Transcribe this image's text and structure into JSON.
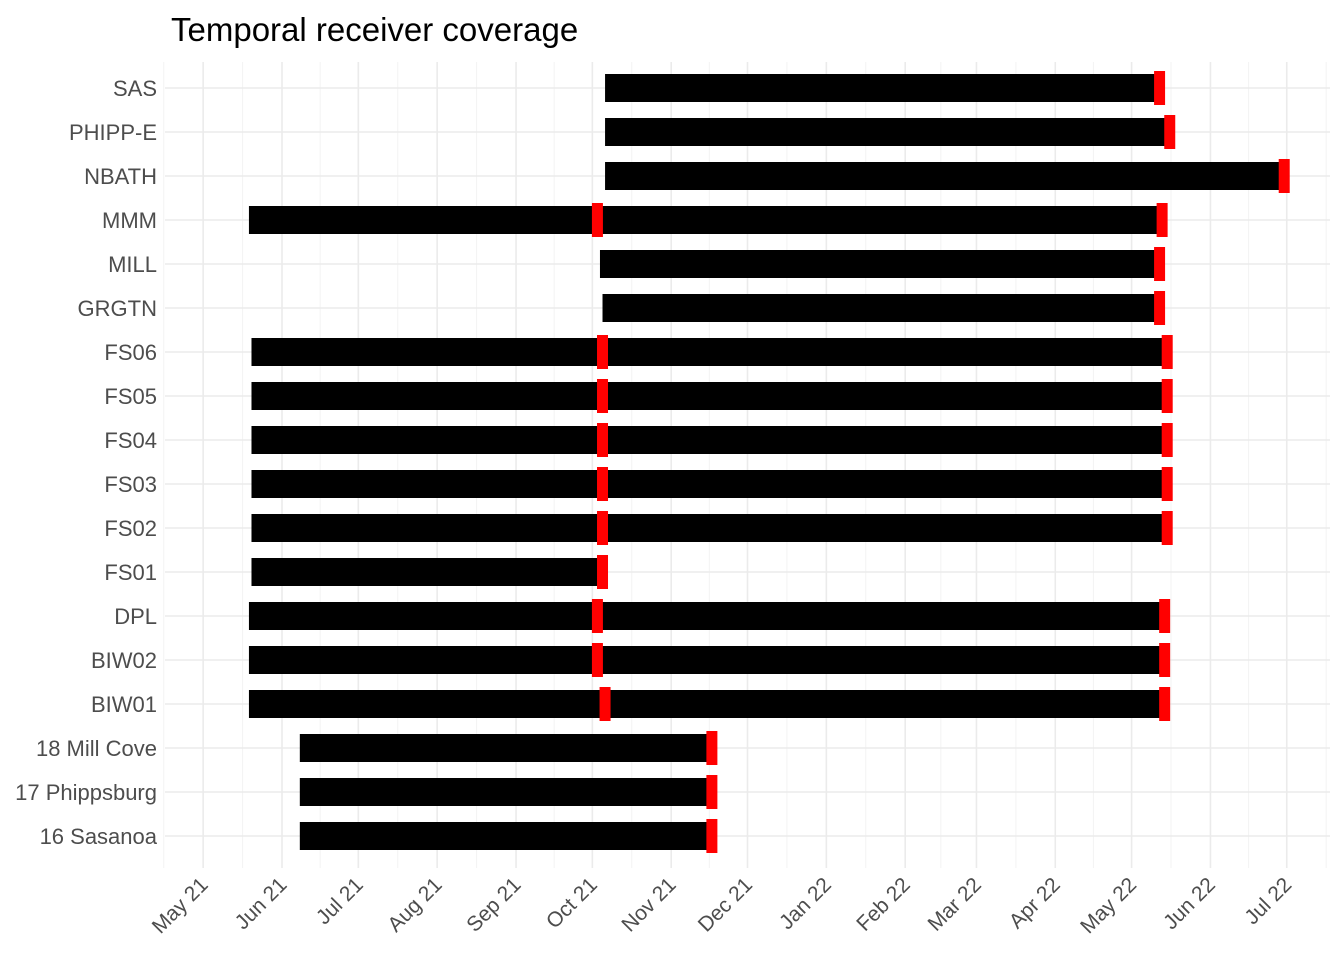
{
  "chart_data": {
    "type": "bar",
    "subtype": "timeline",
    "title": "Temporal receiver coverage",
    "xlabel": "",
    "ylabel": "",
    "grid": true,
    "xlim": [
      "2021-04-16",
      "2022-07-18"
    ],
    "x_ticks": [
      "May 21",
      "Jun 21",
      "Jul 21",
      "Aug 21",
      "Sep 21",
      "Oct 21",
      "Nov 21",
      "Dec 21",
      "Jan 22",
      "Feb 22",
      "Mar 22",
      "Apr 22",
      "May 22",
      "Jun 22",
      "Jul 22"
    ],
    "x_tick_dates": [
      "2021-05-01",
      "2021-06-01",
      "2021-07-01",
      "2021-08-01",
      "2021-09-01",
      "2021-10-01",
      "2021-11-01",
      "2021-12-01",
      "2022-01-01",
      "2022-02-01",
      "2022-03-01",
      "2022-04-01",
      "2022-05-01",
      "2022-06-01",
      "2022-07-01"
    ],
    "categories": [
      "SAS",
      "PHIPP-E",
      "NBATH",
      "MMM",
      "MILL",
      "GRGTN",
      "FS06",
      "FS05",
      "FS04",
      "FS03",
      "FS02",
      "FS01",
      "DPL",
      "BIW02",
      "BIW01",
      "18 Mill Cove",
      "17 Phippsburg",
      "16 Sasanoa"
    ],
    "bar_color": "#000000",
    "marker_color": "#ff0000",
    "series": [
      {
        "category": "SAS",
        "segments": [
          [
            "2021-10-06",
            "2022-05-12"
          ]
        ]
      },
      {
        "category": "PHIPP-E",
        "segments": [
          [
            "2021-10-06",
            "2022-05-16"
          ]
        ]
      },
      {
        "category": "NBATH",
        "segments": [
          [
            "2021-10-06",
            "2022-06-30"
          ]
        ]
      },
      {
        "category": "MMM",
        "segments": [
          [
            "2021-05-19",
            "2021-10-03"
          ],
          [
            "2021-10-03",
            "2022-05-13"
          ]
        ]
      },
      {
        "category": "MILL",
        "segments": [
          [
            "2021-10-04",
            "2022-05-12"
          ]
        ]
      },
      {
        "category": "GRGTN",
        "segments": [
          [
            "2021-10-05",
            "2022-05-12"
          ]
        ]
      },
      {
        "category": "FS06",
        "segments": [
          [
            "2021-05-20",
            "2021-10-05"
          ],
          [
            "2021-10-05",
            "2022-05-15"
          ]
        ]
      },
      {
        "category": "FS05",
        "segments": [
          [
            "2021-05-20",
            "2021-10-05"
          ],
          [
            "2021-10-05",
            "2022-05-15"
          ]
        ]
      },
      {
        "category": "FS04",
        "segments": [
          [
            "2021-05-20",
            "2021-10-05"
          ],
          [
            "2021-10-05",
            "2022-05-15"
          ]
        ]
      },
      {
        "category": "FS03",
        "segments": [
          [
            "2021-05-20",
            "2021-10-05"
          ],
          [
            "2021-10-05",
            "2022-05-15"
          ]
        ]
      },
      {
        "category": "FS02",
        "segments": [
          [
            "2021-05-20",
            "2021-10-05"
          ],
          [
            "2021-10-05",
            "2022-05-15"
          ]
        ]
      },
      {
        "category": "FS01",
        "segments": [
          [
            "2021-05-20",
            "2021-10-05"
          ]
        ]
      },
      {
        "category": "DPL",
        "segments": [
          [
            "2021-05-19",
            "2021-10-03"
          ],
          [
            "2021-10-03",
            "2022-05-14"
          ]
        ]
      },
      {
        "category": "BIW02",
        "segments": [
          [
            "2021-05-19",
            "2021-10-03"
          ],
          [
            "2021-10-03",
            "2022-05-14"
          ]
        ]
      },
      {
        "category": "BIW01",
        "segments": [
          [
            "2021-05-19",
            "2021-10-06"
          ],
          [
            "2021-10-06",
            "2022-05-14"
          ]
        ]
      },
      {
        "category": "18 Mill Cove",
        "segments": [
          [
            "2021-06-08",
            "2021-11-17"
          ]
        ]
      },
      {
        "category": "17 Phippsburg",
        "segments": [
          [
            "2021-06-08",
            "2021-11-17"
          ]
        ]
      },
      {
        "category": "16 Sasanoa",
        "segments": [
          [
            "2021-06-08",
            "2021-11-17"
          ]
        ]
      }
    ]
  }
}
